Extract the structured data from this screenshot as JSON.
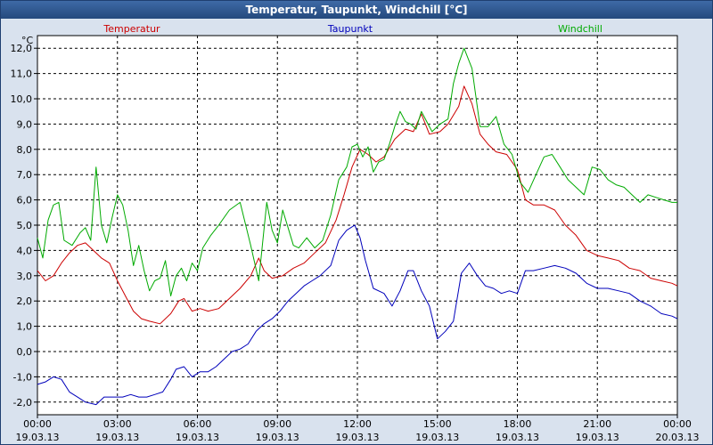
{
  "window": {
    "title": "Temperatur, Taupunkt, Windchill [°C]"
  },
  "chart_data": {
    "type": "line",
    "title": "Temperatur, Taupunkt, Windchill [°C]",
    "ylabel": "°C",
    "ylim": [
      -2.5,
      12.5
    ],
    "y_ticks": [
      -2,
      -1,
      0,
      1,
      2,
      3,
      4,
      5,
      6,
      7,
      8,
      9,
      10,
      11,
      12
    ],
    "y_tick_labels": [
      "-2,0",
      "-1,0",
      "0,0",
      "1,0",
      "2,0",
      "3,0",
      "4,0",
      "5,0",
      "6,0",
      "7,0",
      "8,0",
      "9,0",
      "10,0",
      "11,0",
      "12,0"
    ],
    "xlim": [
      0,
      24
    ],
    "x_ticks": [
      0,
      3,
      6,
      9,
      12,
      15,
      18,
      21,
      24
    ],
    "x_tick_times": [
      "00:00",
      "03:00",
      "06:00",
      "09:00",
      "12:00",
      "15:00",
      "18:00",
      "21:00",
      "00:00"
    ],
    "x_tick_dates": [
      "19.03.13",
      "19.03.13",
      "19.03.13",
      "19.03.13",
      "19.03.13",
      "19.03.13",
      "19.03.13",
      "19.03.13",
      "20.03.13"
    ],
    "x_unit": "hours since 19.03.13 00:00",
    "grid": true,
    "legend_position": "top",
    "series": [
      {
        "name": "Temperatur",
        "color": "#cc0000",
        "points": [
          [
            0.0,
            3.2
          ],
          [
            0.3,
            2.8
          ],
          [
            0.6,
            3.0
          ],
          [
            0.9,
            3.5
          ],
          [
            1.2,
            3.9
          ],
          [
            1.5,
            4.2
          ],
          [
            1.8,
            4.3
          ],
          [
            2.1,
            4.0
          ],
          [
            2.4,
            3.7
          ],
          [
            2.7,
            3.5
          ],
          [
            3.0,
            2.8
          ],
          [
            3.3,
            2.2
          ],
          [
            3.6,
            1.6
          ],
          [
            3.9,
            1.3
          ],
          [
            4.2,
            1.2
          ],
          [
            4.6,
            1.1
          ],
          [
            5.0,
            1.5
          ],
          [
            5.3,
            2.0
          ],
          [
            5.5,
            2.1
          ],
          [
            5.8,
            1.6
          ],
          [
            6.1,
            1.7
          ],
          [
            6.4,
            1.6
          ],
          [
            6.8,
            1.7
          ],
          [
            7.2,
            2.1
          ],
          [
            7.6,
            2.5
          ],
          [
            8.0,
            3.0
          ],
          [
            8.3,
            3.7
          ],
          [
            8.5,
            3.2
          ],
          [
            8.8,
            2.9
          ],
          [
            9.2,
            3.0
          ],
          [
            9.6,
            3.3
          ],
          [
            10.0,
            3.5
          ],
          [
            10.4,
            3.9
          ],
          [
            10.8,
            4.3
          ],
          [
            11.2,
            5.2
          ],
          [
            11.5,
            6.2
          ],
          [
            11.8,
            7.3
          ],
          [
            12.1,
            8.0
          ],
          [
            12.4,
            7.8
          ],
          [
            12.7,
            7.5
          ],
          [
            13.0,
            7.7
          ],
          [
            13.4,
            8.4
          ],
          [
            13.8,
            8.8
          ],
          [
            14.1,
            8.7
          ],
          [
            14.4,
            9.4
          ],
          [
            14.7,
            8.6
          ],
          [
            15.1,
            8.7
          ],
          [
            15.4,
            9.0
          ],
          [
            15.8,
            9.7
          ],
          [
            16.0,
            10.5
          ],
          [
            16.3,
            9.8
          ],
          [
            16.6,
            8.6
          ],
          [
            16.9,
            8.2
          ],
          [
            17.2,
            7.9
          ],
          [
            17.6,
            7.8
          ],
          [
            18.0,
            7.2
          ],
          [
            18.3,
            6.0
          ],
          [
            18.6,
            5.8
          ],
          [
            19.0,
            5.8
          ],
          [
            19.4,
            5.6
          ],
          [
            19.8,
            5.0
          ],
          [
            20.2,
            4.6
          ],
          [
            20.6,
            4.0
          ],
          [
            21.0,
            3.8
          ],
          [
            21.4,
            3.7
          ],
          [
            21.8,
            3.6
          ],
          [
            22.2,
            3.3
          ],
          [
            22.6,
            3.2
          ],
          [
            23.0,
            2.9
          ],
          [
            23.4,
            2.8
          ],
          [
            23.8,
            2.7
          ],
          [
            24.0,
            2.6
          ]
        ]
      },
      {
        "name": "Taupunkt",
        "color": "#0000bb",
        "points": [
          [
            0.0,
            -1.3
          ],
          [
            0.3,
            -1.2
          ],
          [
            0.6,
            -1.0
          ],
          [
            0.9,
            -1.1
          ],
          [
            1.2,
            -1.6
          ],
          [
            1.5,
            -1.8
          ],
          [
            1.8,
            -2.0
          ],
          [
            2.2,
            -2.1
          ],
          [
            2.5,
            -1.8
          ],
          [
            2.8,
            -1.8
          ],
          [
            3.2,
            -1.8
          ],
          [
            3.5,
            -1.7
          ],
          [
            3.8,
            -1.8
          ],
          [
            4.1,
            -1.8
          ],
          [
            4.4,
            -1.7
          ],
          [
            4.7,
            -1.6
          ],
          [
            5.0,
            -1.1
          ],
          [
            5.2,
            -0.7
          ],
          [
            5.5,
            -0.6
          ],
          [
            5.8,
            -1.0
          ],
          [
            6.1,
            -0.8
          ],
          [
            6.4,
            -0.8
          ],
          [
            6.7,
            -0.6
          ],
          [
            7.0,
            -0.3
          ],
          [
            7.3,
            0.0
          ],
          [
            7.6,
            0.1
          ],
          [
            7.9,
            0.3
          ],
          [
            8.2,
            0.8
          ],
          [
            8.5,
            1.1
          ],
          [
            8.8,
            1.3
          ],
          [
            9.1,
            1.6
          ],
          [
            9.4,
            2.0
          ],
          [
            9.7,
            2.3
          ],
          [
            10.0,
            2.6
          ],
          [
            10.3,
            2.8
          ],
          [
            10.6,
            3.0
          ],
          [
            11.0,
            3.4
          ],
          [
            11.3,
            4.4
          ],
          [
            11.6,
            4.8
          ],
          [
            11.9,
            5.0
          ],
          [
            12.1,
            4.5
          ],
          [
            12.3,
            3.6
          ],
          [
            12.6,
            2.5
          ],
          [
            13.0,
            2.3
          ],
          [
            13.3,
            1.8
          ],
          [
            13.6,
            2.4
          ],
          [
            13.9,
            3.2
          ],
          [
            14.1,
            3.2
          ],
          [
            14.4,
            2.4
          ],
          [
            14.7,
            1.8
          ],
          [
            15.0,
            0.5
          ],
          [
            15.3,
            0.8
          ],
          [
            15.6,
            1.2
          ],
          [
            15.9,
            3.1
          ],
          [
            16.2,
            3.5
          ],
          [
            16.5,
            3.0
          ],
          [
            16.8,
            2.6
          ],
          [
            17.1,
            2.5
          ],
          [
            17.4,
            2.3
          ],
          [
            17.7,
            2.4
          ],
          [
            18.0,
            2.3
          ],
          [
            18.3,
            3.2
          ],
          [
            18.6,
            3.2
          ],
          [
            19.0,
            3.3
          ],
          [
            19.4,
            3.4
          ],
          [
            19.8,
            3.3
          ],
          [
            20.2,
            3.1
          ],
          [
            20.6,
            2.7
          ],
          [
            21.0,
            2.5
          ],
          [
            21.4,
            2.5
          ],
          [
            21.8,
            2.4
          ],
          [
            22.2,
            2.3
          ],
          [
            22.6,
            2.0
          ],
          [
            23.0,
            1.8
          ],
          [
            23.4,
            1.5
          ],
          [
            23.8,
            1.4
          ],
          [
            24.0,
            1.3
          ]
        ]
      },
      {
        "name": "Windchill",
        "color": "#00aa00",
        "points": [
          [
            0.0,
            4.5
          ],
          [
            0.2,
            3.7
          ],
          [
            0.4,
            5.2
          ],
          [
            0.6,
            5.8
          ],
          [
            0.8,
            5.9
          ],
          [
            1.0,
            4.4
          ],
          [
            1.3,
            4.2
          ],
          [
            1.6,
            4.7
          ],
          [
            1.8,
            4.9
          ],
          [
            2.0,
            4.4
          ],
          [
            2.2,
            7.3
          ],
          [
            2.4,
            5.0
          ],
          [
            2.6,
            4.3
          ],
          [
            2.8,
            5.3
          ],
          [
            3.0,
            6.2
          ],
          [
            3.2,
            5.8
          ],
          [
            3.4,
            4.8
          ],
          [
            3.6,
            3.4
          ],
          [
            3.8,
            4.2
          ],
          [
            4.0,
            3.2
          ],
          [
            4.2,
            2.4
          ],
          [
            4.4,
            2.8
          ],
          [
            4.6,
            2.9
          ],
          [
            4.8,
            3.6
          ],
          [
            5.0,
            2.2
          ],
          [
            5.2,
            3.0
          ],
          [
            5.4,
            3.3
          ],
          [
            5.6,
            2.8
          ],
          [
            5.8,
            3.5
          ],
          [
            6.0,
            3.2
          ],
          [
            6.2,
            4.1
          ],
          [
            6.5,
            4.6
          ],
          [
            6.8,
            5.0
          ],
          [
            7.2,
            5.6
          ],
          [
            7.6,
            5.9
          ],
          [
            8.0,
            4.2
          ],
          [
            8.3,
            2.8
          ],
          [
            8.6,
            5.9
          ],
          [
            8.8,
            4.8
          ],
          [
            9.0,
            4.3
          ],
          [
            9.2,
            5.6
          ],
          [
            9.4,
            4.9
          ],
          [
            9.6,
            4.2
          ],
          [
            9.8,
            4.1
          ],
          [
            10.1,
            4.5
          ],
          [
            10.4,
            4.1
          ],
          [
            10.7,
            4.4
          ],
          [
            11.0,
            5.4
          ],
          [
            11.3,
            6.8
          ],
          [
            11.6,
            7.3
          ],
          [
            11.8,
            8.1
          ],
          [
            12.0,
            8.2
          ],
          [
            12.2,
            7.7
          ],
          [
            12.4,
            8.1
          ],
          [
            12.6,
            7.1
          ],
          [
            12.8,
            7.5
          ],
          [
            13.0,
            7.6
          ],
          [
            13.2,
            8.2
          ],
          [
            13.4,
            8.9
          ],
          [
            13.6,
            9.5
          ],
          [
            13.8,
            9.1
          ],
          [
            14.0,
            9.0
          ],
          [
            14.2,
            8.8
          ],
          [
            14.4,
            9.5
          ],
          [
            14.6,
            9.1
          ],
          [
            14.8,
            8.7
          ],
          [
            15.1,
            9.0
          ],
          [
            15.4,
            9.2
          ],
          [
            15.6,
            10.6
          ],
          [
            15.8,
            11.4
          ],
          [
            16.0,
            12.0
          ],
          [
            16.3,
            11.2
          ],
          [
            16.6,
            8.9
          ],
          [
            16.9,
            8.9
          ],
          [
            17.2,
            9.3
          ],
          [
            17.5,
            8.2
          ],
          [
            17.8,
            7.8
          ],
          [
            18.1,
            6.7
          ],
          [
            18.4,
            6.3
          ],
          [
            18.7,
            7.0
          ],
          [
            19.0,
            7.7
          ],
          [
            19.3,
            7.8
          ],
          [
            19.6,
            7.3
          ],
          [
            19.9,
            6.8
          ],
          [
            20.2,
            6.5
          ],
          [
            20.5,
            6.2
          ],
          [
            20.8,
            7.3
          ],
          [
            21.1,
            7.2
          ],
          [
            21.4,
            6.8
          ],
          [
            21.7,
            6.6
          ],
          [
            22.0,
            6.5
          ],
          [
            22.3,
            6.2
          ],
          [
            22.6,
            5.9
          ],
          [
            22.9,
            6.2
          ],
          [
            23.2,
            6.1
          ],
          [
            23.5,
            6.0
          ],
          [
            23.8,
            5.9
          ],
          [
            24.0,
            5.9
          ]
        ]
      }
    ]
  }
}
